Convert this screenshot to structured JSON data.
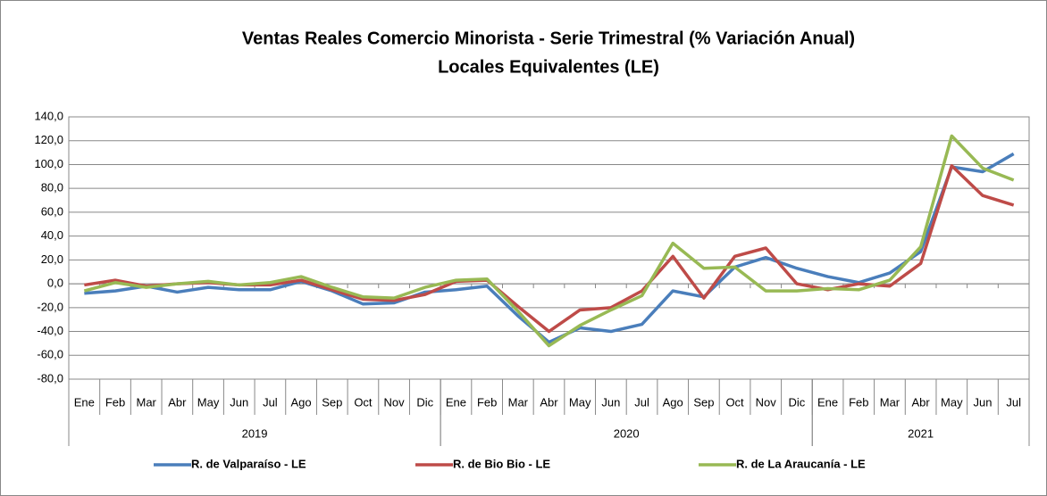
{
  "chart_data": {
    "type": "line",
    "title": "Ventas Reales Comercio Minorista - Serie Trimestral (% Variación Anual)",
    "subtitle": "Locales Equivalentes (LE)",
    "categories": [
      "Ene",
      "Feb",
      "Mar",
      "Abr",
      "May",
      "Jun",
      "Jul",
      "Ago",
      "Sep",
      "Oct",
      "Nov",
      "Dic",
      "Ene",
      "Feb",
      "Mar",
      "Abr",
      "May",
      "Jun",
      "Jul",
      "Ago",
      "Sep",
      "Oct",
      "Nov",
      "Dic",
      "Ene",
      "Feb",
      "Mar",
      "Abr",
      "May",
      "Jun",
      "Jul"
    ],
    "groups": [
      {
        "label": "2019",
        "months": 12
      },
      {
        "label": "2020",
        "months": 12
      },
      {
        "label": "2021",
        "months": 7
      }
    ],
    "series": [
      {
        "name": "R. de Valparaíso - LE",
        "color": "#4a7ebb",
        "values": [
          -8,
          -6,
          -2,
          -7,
          -3,
          -5,
          -5,
          2,
          -6,
          -17,
          -16,
          -7,
          -5,
          -2,
          -27,
          -49,
          -37,
          -40,
          -34,
          -6,
          -11,
          14,
          22,
          13,
          6,
          1,
          9,
          27,
          98,
          94,
          109
        ]
      },
      {
        "name": "R. de Bio Bio - LE",
        "color": "#be4b48",
        "values": [
          -1,
          3,
          -2,
          0,
          1,
          -1,
          -1,
          3,
          -5,
          -13,
          -14,
          -9,
          2,
          3,
          -19,
          -40,
          -22,
          -20,
          -6,
          23,
          -12,
          23,
          30,
          0,
          -5,
          0,
          -2,
          17,
          99,
          74,
          66
        ]
      },
      {
        "name": "R. de La Araucanía - LE",
        "color": "#98b954",
        "values": [
          -6,
          1,
          -3,
          0,
          2,
          -1,
          1,
          6,
          -3,
          -11,
          -12,
          -3,
          3,
          4,
          -23,
          -52,
          -35,
          -22,
          -10,
          34,
          13,
          14,
          -6,
          -6,
          -4,
          -5,
          3,
          31,
          124,
          97,
          87
        ]
      }
    ],
    "ylim": [
      -80,
      140
    ],
    "yticks": [
      {
        "value": -80,
        "label": "-80,0"
      },
      {
        "value": -60,
        "label": "-60,0"
      },
      {
        "value": -40,
        "label": "-40,0"
      },
      {
        "value": -20,
        "label": "-20,0"
      },
      {
        "value": 0,
        "label": "0,0"
      },
      {
        "value": 20,
        "label": "20,0"
      },
      {
        "value": 40,
        "label": "40,0"
      },
      {
        "value": 60,
        "label": "60,0"
      },
      {
        "value": 80,
        "label": "80,0"
      },
      {
        "value": 100,
        "label": "100,0"
      },
      {
        "value": 120,
        "label": "120,0"
      },
      {
        "value": 140,
        "label": "140,0"
      }
    ],
    "grid": true
  }
}
